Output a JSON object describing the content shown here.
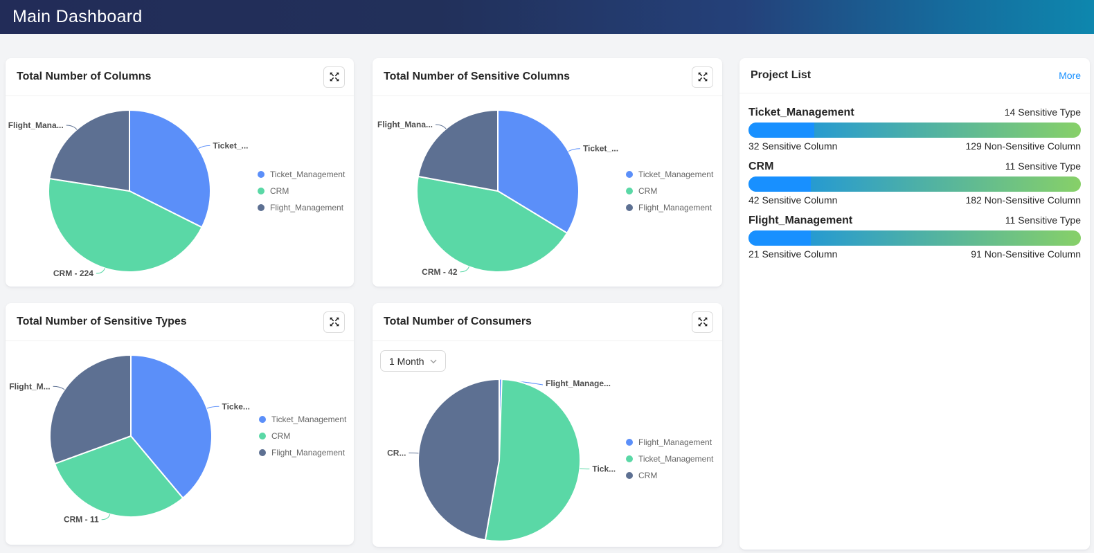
{
  "header": {
    "title": "Main Dashboard"
  },
  "palette": {
    "series_colors": [
      "#5B8FF9",
      "#5AD8A6",
      "#5D7092"
    ],
    "link_blue": "#1890ff",
    "bar_sensitive_blue": "#1890ff",
    "bar_gradient_from": "#108ee9",
    "bar_gradient_to": "#87d068"
  },
  "chart_data": [
    {
      "type": "pie",
      "title": "Total Number of Columns",
      "series": [
        {
          "name": "Ticket_Management",
          "value": 161,
          "label": "Ticket_..."
        },
        {
          "name": "CRM",
          "value": 224,
          "label": "CRM - 224"
        },
        {
          "name": "Flight_Management",
          "value": 112,
          "label": "Flight_Mana..."
        }
      ],
      "legend": [
        "Ticket_Management",
        "CRM",
        "Flight_Management"
      ],
      "legend_position": "right",
      "colors": [
        "#5B8FF9",
        "#5AD8A6",
        "#5D7092"
      ]
    },
    {
      "type": "pie",
      "title": "Total Number of Sensitive Columns",
      "series": [
        {
          "name": "Ticket_Management",
          "value": 32,
          "label": "Ticket_..."
        },
        {
          "name": "CRM",
          "value": 42,
          "label": "CRM - 42"
        },
        {
          "name": "Flight_Management",
          "value": 21,
          "label": "Flight_Mana..."
        }
      ],
      "legend": [
        "Ticket_Management",
        "CRM",
        "Flight_Management"
      ],
      "legend_position": "right",
      "colors": [
        "#5B8FF9",
        "#5AD8A6",
        "#5D7092"
      ]
    },
    {
      "type": "pie",
      "title": "Total Number of Sensitive Types",
      "series": [
        {
          "name": "Ticket_Management",
          "value": 14,
          "label": "Ticke..."
        },
        {
          "name": "CRM",
          "value": 11,
          "label": "CRM - 11"
        },
        {
          "name": "Flight_Management",
          "value": 11,
          "label": "Flight_M..."
        }
      ],
      "legend": [
        "Ticket_Management",
        "CRM",
        "Flight_Management"
      ],
      "legend_position": "right",
      "colors": [
        "#5B8FF9",
        "#5AD8A6",
        "#5D7092"
      ]
    },
    {
      "type": "pie",
      "title": "Total Number of Consumers",
      "filter": {
        "value": "1 Month"
      },
      "series": [
        {
          "name": "Flight_Management",
          "value": 1,
          "label": "Flight_Manage..."
        },
        {
          "name": "Ticket_Management",
          "value": 104,
          "label": "Tick..."
        },
        {
          "name": "CRM",
          "value": 94,
          "label": "CR..."
        }
      ],
      "legend": [
        "Flight_Management",
        "Ticket_Management",
        "CRM"
      ],
      "legend_position": "right",
      "colors": [
        "#5B8FF9",
        "#5AD8A6",
        "#5D7092"
      ]
    }
  ],
  "project_list": {
    "title": "Project List",
    "more_label": "More",
    "projects": [
      {
        "name": "Ticket_Management",
        "sensitive_type_label": "14 Sensitive Type",
        "sensitive_column_label": "32 Sensitive Column",
        "non_sensitive_column_label": "129 Non-Sensitive Column",
        "sensitive_columns": 32,
        "total_columns": 161
      },
      {
        "name": "CRM",
        "sensitive_type_label": "11 Sensitive Type",
        "sensitive_column_label": "42 Sensitive Column",
        "non_sensitive_column_label": "182 Non-Sensitive Column",
        "sensitive_columns": 42,
        "total_columns": 224
      },
      {
        "name": "Flight_Management",
        "sensitive_type_label": "11 Sensitive Type",
        "sensitive_column_label": "21 Sensitive Column",
        "non_sensitive_column_label": "91 Non-Sensitive Column",
        "sensitive_columns": 21,
        "total_columns": 112
      }
    ]
  }
}
